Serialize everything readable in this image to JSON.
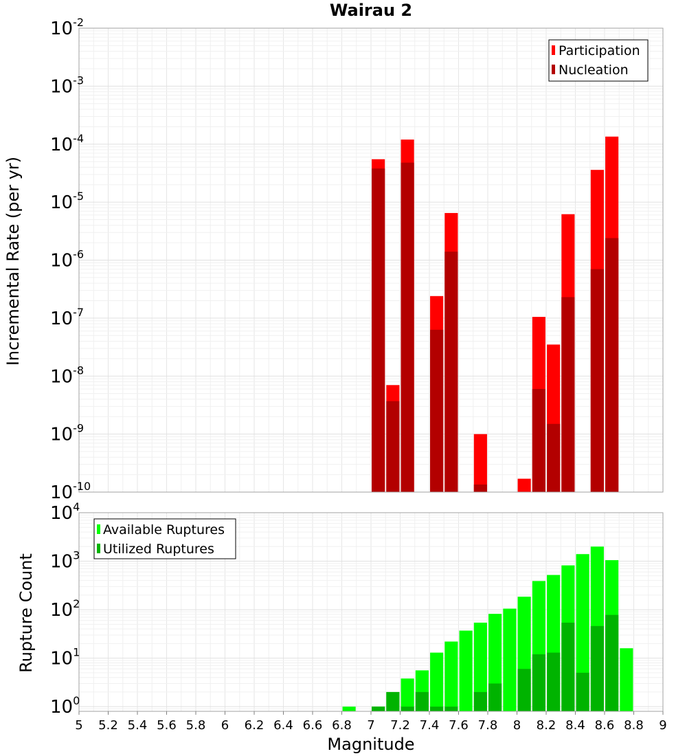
{
  "chart_data": [
    {
      "type": "bar",
      "title": "Wairau 2",
      "xlabel": "Magnitude",
      "ylabel": "Incremental Rate (per yr)",
      "yscale": "log",
      "xlim": [
        5,
        9
      ],
      "ylim": [
        1e-10,
        0.01
      ],
      "grid": true,
      "legend_position": "top-right",
      "bar_width": 0.09,
      "series": [
        {
          "name": "Participation",
          "color": "#ff0000",
          "points": [
            {
              "x": 7.05,
              "y": 5.5e-05
            },
            {
              "x": 7.15,
              "y": 7e-09
            },
            {
              "x": 7.25,
              "y": 0.00012
            },
            {
              "x": 7.45,
              "y": 2.4e-07
            },
            {
              "x": 7.55,
              "y": 6.5e-06
            },
            {
              "x": 7.75,
              "y": 1e-09
            },
            {
              "x": 8.05,
              "y": 1.7e-10
            },
            {
              "x": 8.15,
              "y": 1.05e-07
            },
            {
              "x": 8.25,
              "y": 3.5e-08
            },
            {
              "x": 8.35,
              "y": 6.2e-06
            },
            {
              "x": 8.55,
              "y": 3.6e-05
            },
            {
              "x": 8.65,
              "y": 0.000135
            }
          ]
        },
        {
          "name": "Nucleation",
          "color": "#b30000",
          "points": [
            {
              "x": 7.05,
              "y": 3.8e-05
            },
            {
              "x": 7.15,
              "y": 3.7e-09
            },
            {
              "x": 7.25,
              "y": 4.8e-05
            },
            {
              "x": 7.45,
              "y": 6.3e-08
            },
            {
              "x": 7.55,
              "y": 1.4e-06
            },
            {
              "x": 7.75,
              "y": 1.35e-10
            },
            {
              "x": 8.15,
              "y": 6e-09
            },
            {
              "x": 8.25,
              "y": 1.5e-09
            },
            {
              "x": 8.35,
              "y": 2.3e-07
            },
            {
              "x": 8.55,
              "y": 7e-07
            },
            {
              "x": 8.65,
              "y": 2.4e-06
            }
          ]
        }
      ]
    },
    {
      "type": "bar",
      "xlabel": "Magnitude",
      "ylabel": "Rupture Count",
      "yscale": "log",
      "xlim": [
        5,
        9
      ],
      "ylim": [
        0.8,
        10000
      ],
      "grid": true,
      "legend_position": "top-left",
      "bar_width": 0.09,
      "x_ticks": [
        "5",
        "5.2",
        "5.4",
        "5.6",
        "5.8",
        "6",
        "6.2",
        "6.4",
        "6.6",
        "6.8",
        "7",
        "7.2",
        "7.4",
        "7.6",
        "7.8",
        "8",
        "8.2",
        "8.4",
        "8.6",
        "8.8",
        "9"
      ],
      "series": [
        {
          "name": "Available Ruptures",
          "color": "#00ff00",
          "points": [
            {
              "x": 6.85,
              "y": 1
            },
            {
              "x": 7.05,
              "y": 1
            },
            {
              "x": 7.15,
              "y": 2
            },
            {
              "x": 7.25,
              "y": 3.8
            },
            {
              "x": 7.35,
              "y": 5.6
            },
            {
              "x": 7.45,
              "y": 13
            },
            {
              "x": 7.55,
              "y": 22
            },
            {
              "x": 7.65,
              "y": 37
            },
            {
              "x": 7.75,
              "y": 54
            },
            {
              "x": 7.85,
              "y": 82
            },
            {
              "x": 7.95,
              "y": 105
            },
            {
              "x": 8.05,
              "y": 185
            },
            {
              "x": 8.15,
              "y": 390
            },
            {
              "x": 8.25,
              "y": 520
            },
            {
              "x": 8.35,
              "y": 820
            },
            {
              "x": 8.45,
              "y": 1400
            },
            {
              "x": 8.55,
              "y": 2000
            },
            {
              "x": 8.65,
              "y": 1050
            },
            {
              "x": 8.75,
              "y": 16
            }
          ]
        },
        {
          "name": "Utilized Ruptures",
          "color": "#00b300",
          "points": [
            {
              "x": 7.05,
              "y": 1
            },
            {
              "x": 7.15,
              "y": 2
            },
            {
              "x": 7.25,
              "y": 1
            },
            {
              "x": 7.35,
              "y": 2
            },
            {
              "x": 7.45,
              "y": 1
            },
            {
              "x": 7.55,
              "y": 1
            },
            {
              "x": 7.75,
              "y": 2
            },
            {
              "x": 7.85,
              "y": 3
            },
            {
              "x": 8.05,
              "y": 6
            },
            {
              "x": 8.15,
              "y": 12
            },
            {
              "x": 8.25,
              "y": 13
            },
            {
              "x": 8.35,
              "y": 54
            },
            {
              "x": 8.45,
              "y": 5
            },
            {
              "x": 8.55,
              "y": 46
            },
            {
              "x": 8.65,
              "y": 78
            }
          ]
        }
      ]
    }
  ]
}
